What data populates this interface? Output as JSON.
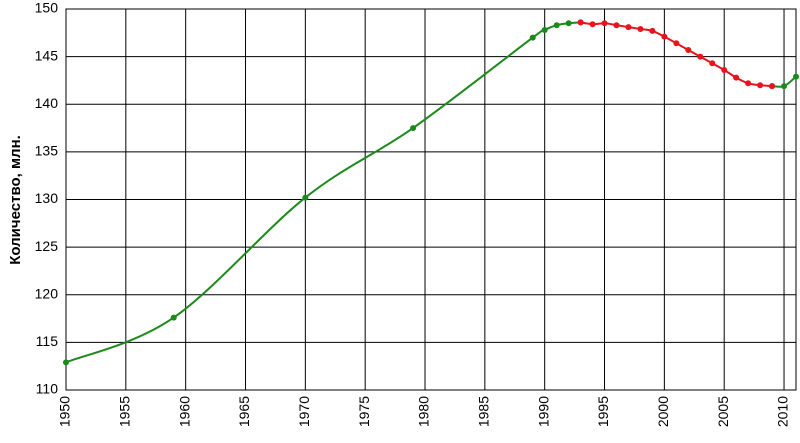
{
  "chart_data": {
    "type": "line",
    "y_label": "Количество, млн.",
    "x": [
      1950,
      1959,
      1970,
      1979,
      1989,
      1990,
      1991,
      1992,
      1993,
      1994,
      1995,
      1996,
      1997,
      1998,
      1999,
      2000,
      2001,
      2002,
      2003,
      2004,
      2005,
      2006,
      2007,
      2008,
      2009,
      2010,
      2011
    ],
    "series": [
      {
        "color": "#1a8a1a",
        "values": [
          112.9,
          117.6,
          130.2,
          137.5,
          147.0,
          147.8,
          148.3,
          148.5,
          148.6,
          null,
          null,
          null,
          null,
          null,
          null,
          null,
          null,
          null,
          null,
          null,
          null,
          null,
          null,
          null,
          141.9,
          141.9,
          142.9
        ]
      },
      {
        "color": "#e8141c",
        "values": [
          null,
          null,
          null,
          null,
          null,
          null,
          null,
          null,
          148.6,
          148.4,
          148.5,
          148.3,
          148.1,
          147.9,
          147.7,
          147.1,
          146.4,
          145.7,
          145.0,
          144.3,
          143.6,
          142.8,
          142.2,
          142.0,
          141.9,
          null,
          null
        ]
      }
    ],
    "xlim": [
      1950,
      2011
    ],
    "ylim": [
      110,
      150
    ],
    "xticks": [
      1950,
      1955,
      1960,
      1965,
      1970,
      1975,
      1980,
      1985,
      1990,
      1995,
      2000,
      2005,
      2010
    ],
    "yticks": [
      110,
      115,
      120,
      125,
      130,
      135,
      140,
      145,
      150
    ],
    "grid": true
  }
}
